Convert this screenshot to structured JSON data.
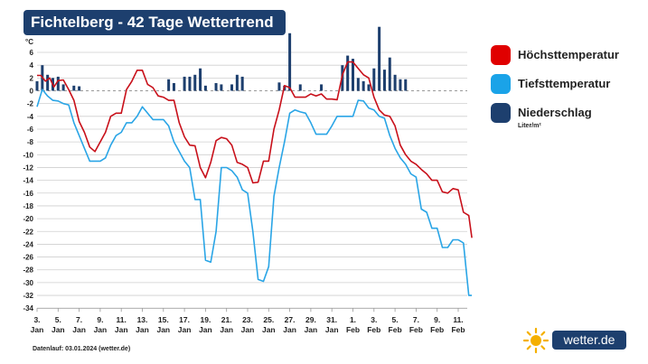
{
  "title": "Fichtelberg - 42 Tage Wettertrend",
  "footer": "Datenlauf: 03.01.2024 (wetter.de)",
  "brand": {
    "name": "wetter",
    "suffix": ".de"
  },
  "legend": [
    {
      "label": "Höchsttemperatur",
      "color": "#e00000"
    },
    {
      "label": "Tiefsttemperatur",
      "color": "#1aa3e8"
    },
    {
      "label": "Niederschlag",
      "color": "#1d3f6e",
      "unit": "Liter/m²"
    }
  ],
  "chart_data": {
    "type": "line",
    "yunit": "°C",
    "ylim": [
      -34,
      6
    ],
    "yticks": [
      6,
      4,
      2,
      0,
      -2,
      -4,
      -6,
      -8,
      -10,
      -12,
      -14,
      -16,
      -18,
      -20,
      -22,
      -24,
      -26,
      -28,
      -30,
      -32,
      -34
    ],
    "xlabels": [
      {
        "day": 0,
        "d": "3.",
        "m": "Jan"
      },
      {
        "day": 2,
        "d": "5.",
        "m": "Jan"
      },
      {
        "day": 4,
        "d": "7.",
        "m": "Jan"
      },
      {
        "day": 6,
        "d": "9.",
        "m": "Jan"
      },
      {
        "day": 8,
        "d": "11.",
        "m": "Jan"
      },
      {
        "day": 10,
        "d": "13.",
        "m": "Jan"
      },
      {
        "day": 12,
        "d": "15.",
        "m": "Jan"
      },
      {
        "day": 14,
        "d": "17.",
        "m": "Jan"
      },
      {
        "day": 16,
        "d": "19.",
        "m": "Jan"
      },
      {
        "day": 18,
        "d": "21.",
        "m": "Jan"
      },
      {
        "day": 20,
        "d": "23.",
        "m": "Jan"
      },
      {
        "day": 22,
        "d": "25.",
        "m": "Jan"
      },
      {
        "day": 24,
        "d": "27.",
        "m": "Jan"
      },
      {
        "day": 26,
        "d": "29.",
        "m": "Jan"
      },
      {
        "day": 28,
        "d": "31.",
        "m": "Jan"
      },
      {
        "day": 30,
        "d": "1.",
        "m": "Feb"
      },
      {
        "day": 32,
        "d": "3.",
        "m": "Feb"
      },
      {
        "day": 34,
        "d": "5.",
        "m": "Feb"
      },
      {
        "day": 36,
        "d": "7.",
        "m": "Feb"
      },
      {
        "day": 38,
        "d": "9.",
        "m": "Feb"
      },
      {
        "day": 40,
        "d": "11.",
        "m": "Feb"
      }
    ],
    "series": [
      {
        "name": "Höchsttemperatur",
        "color": "#c8101a",
        "points": [
          [
            0,
            2.4
          ],
          [
            0.35,
            2.4
          ],
          [
            0.8,
            1.5
          ],
          [
            1.2,
            2.0
          ],
          [
            1.6,
            0.6
          ],
          [
            2.0,
            1.6
          ],
          [
            2.5,
            1.7
          ],
          [
            3.0,
            0.2
          ],
          [
            3.5,
            -1.5
          ],
          [
            4.0,
            -4.8
          ],
          [
            4.5,
            -6.5
          ],
          [
            5.0,
            -8.8
          ],
          [
            5.5,
            -9.5
          ],
          [
            6.0,
            -8.0
          ],
          [
            6.5,
            -6.5
          ],
          [
            7.0,
            -4.0
          ],
          [
            7.5,
            -3.5
          ],
          [
            8.0,
            -3.5
          ],
          [
            8.5,
            0.2
          ],
          [
            9.0,
            1.5
          ],
          [
            9.5,
            3.2
          ],
          [
            10.0,
            3.2
          ],
          [
            10.5,
            1.0
          ],
          [
            11.0,
            0.5
          ],
          [
            11.5,
            -0.8
          ],
          [
            12.0,
            -1.0
          ],
          [
            12.5,
            -1.5
          ],
          [
            13.0,
            -1.5
          ],
          [
            13.5,
            -5.0
          ],
          [
            14.0,
            -7.2
          ],
          [
            14.5,
            -8.5
          ],
          [
            15.0,
            -8.6
          ],
          [
            15.5,
            -12.0
          ],
          [
            16.0,
            -13.6
          ],
          [
            16.5,
            -11.2
          ],
          [
            17.0,
            -7.8
          ],
          [
            17.5,
            -7.3
          ],
          [
            18.0,
            -7.5
          ],
          [
            18.5,
            -8.5
          ],
          [
            19.0,
            -11.2
          ],
          [
            19.5,
            -11.5
          ],
          [
            20.0,
            -12.0
          ],
          [
            20.5,
            -14.4
          ],
          [
            21.0,
            -14.3
          ],
          [
            21.5,
            -11.0
          ],
          [
            22.0,
            -11.0
          ],
          [
            22.5,
            -6.0
          ],
          [
            23.0,
            -3.0
          ],
          [
            23.5,
            0.8
          ],
          [
            24.0,
            0.5
          ],
          [
            24.5,
            -1.0
          ],
          [
            25.0,
            -1.0
          ],
          [
            25.5,
            -1.0
          ],
          [
            26.0,
            -0.5
          ],
          [
            26.5,
            -0.8
          ],
          [
            27.0,
            -0.5
          ],
          [
            27.5,
            -1.3
          ],
          [
            28.0,
            -1.3
          ],
          [
            28.5,
            -1.4
          ],
          [
            29.0,
            2.5
          ],
          [
            29.5,
            4.5
          ],
          [
            30.0,
            4.5
          ],
          [
            30.5,
            3.5
          ],
          [
            31.0,
            2.5
          ],
          [
            31.5,
            2.0
          ],
          [
            32.0,
            -1.0
          ],
          [
            32.5,
            -3.0
          ],
          [
            33.0,
            -3.8
          ],
          [
            33.5,
            -4.0
          ],
          [
            34.0,
            -5.5
          ],
          [
            34.5,
            -8.5
          ],
          [
            35.0,
            -10.0
          ],
          [
            35.5,
            -11.0
          ],
          [
            36.0,
            -11.5
          ],
          [
            36.5,
            -12.3
          ],
          [
            37.0,
            -13.0
          ],
          [
            37.5,
            -14.0
          ],
          [
            38.0,
            -14.0
          ],
          [
            38.5,
            -15.8
          ],
          [
            39.0,
            -16.0
          ],
          [
            39.5,
            -15.3
          ],
          [
            40.0,
            -15.5
          ],
          [
            40.5,
            -19.0
          ],
          [
            41.0,
            -19.5
          ],
          [
            41.3,
            -23.0
          ]
        ]
      },
      {
        "name": "Tiefsttemperatur",
        "color": "#2aa5e6",
        "points": [
          [
            0,
            -2.5
          ],
          [
            0.5,
            0.2
          ],
          [
            1.0,
            -0.8
          ],
          [
            1.5,
            -1.5
          ],
          [
            2.0,
            -1.6
          ],
          [
            2.5,
            -2.0
          ],
          [
            3.0,
            -2.2
          ],
          [
            3.5,
            -5.0
          ],
          [
            4.0,
            -7.0
          ],
          [
            4.5,
            -9.0
          ],
          [
            5.0,
            -11.0
          ],
          [
            5.5,
            -11.0
          ],
          [
            6.0,
            -11.0
          ],
          [
            6.5,
            -10.5
          ],
          [
            7.0,
            -8.5
          ],
          [
            7.5,
            -7.0
          ],
          [
            8.0,
            -6.5
          ],
          [
            8.5,
            -5.0
          ],
          [
            9.0,
            -5.0
          ],
          [
            9.5,
            -4.0
          ],
          [
            10.0,
            -2.5
          ],
          [
            10.5,
            -3.5
          ],
          [
            11.0,
            -4.5
          ],
          [
            11.5,
            -4.5
          ],
          [
            12.0,
            -4.5
          ],
          [
            12.5,
            -5.5
          ],
          [
            13.0,
            -8.0
          ],
          [
            13.5,
            -9.5
          ],
          [
            14.0,
            -11.0
          ],
          [
            14.5,
            -12.0
          ],
          [
            15.0,
            -17.0
          ],
          [
            15.5,
            -17.0
          ],
          [
            16.0,
            -26.5
          ],
          [
            16.5,
            -26.8
          ],
          [
            17.0,
            -22.0
          ],
          [
            17.5,
            -12.0
          ],
          [
            18.0,
            -12.0
          ],
          [
            18.5,
            -12.5
          ],
          [
            19.0,
            -13.5
          ],
          [
            19.5,
            -15.5
          ],
          [
            20.0,
            -16.0
          ],
          [
            20.5,
            -22.0
          ],
          [
            21.0,
            -29.5
          ],
          [
            21.5,
            -29.8
          ],
          [
            22.0,
            -27.5
          ],
          [
            22.5,
            -16.5
          ],
          [
            23.0,
            -12.0
          ],
          [
            23.5,
            -8.0
          ],
          [
            24.0,
            -3.5
          ],
          [
            24.5,
            -3.0
          ],
          [
            25.0,
            -3.3
          ],
          [
            25.5,
            -3.5
          ],
          [
            26.0,
            -5.0
          ],
          [
            26.5,
            -6.8
          ],
          [
            27.0,
            -6.8
          ],
          [
            27.5,
            -6.8
          ],
          [
            28.0,
            -5.5
          ],
          [
            28.5,
            -4.0
          ],
          [
            29.0,
            -4.0
          ],
          [
            29.5,
            -4.0
          ],
          [
            30.0,
            -4.0
          ],
          [
            30.5,
            -1.5
          ],
          [
            31.0,
            -1.6
          ],
          [
            31.5,
            -2.7
          ],
          [
            32.0,
            -3.0
          ],
          [
            32.5,
            -4.0
          ],
          [
            33.0,
            -4.3
          ],
          [
            33.5,
            -7.0
          ],
          [
            34.0,
            -9.0
          ],
          [
            34.5,
            -10.5
          ],
          [
            35.0,
            -11.5
          ],
          [
            35.5,
            -13.0
          ],
          [
            36.0,
            -13.5
          ],
          [
            36.5,
            -18.5
          ],
          [
            37.0,
            -19.0
          ],
          [
            37.5,
            -21.5
          ],
          [
            38.0,
            -21.5
          ],
          [
            38.5,
            -24.5
          ],
          [
            39.0,
            -24.5
          ],
          [
            39.5,
            -23.3
          ],
          [
            40.0,
            -23.3
          ],
          [
            40.5,
            -23.8
          ],
          [
            41.0,
            -32.0
          ],
          [
            41.3,
            -32.0
          ]
        ]
      }
    ],
    "precipitation": {
      "name": "Niederschlag",
      "color": "#1d3f6e",
      "bars": [
        [
          0.0,
          1.5
        ],
        [
          0.5,
          4.0
        ],
        [
          1.0,
          2.5
        ],
        [
          1.5,
          2.0
        ],
        [
          2.0,
          2.2
        ],
        [
          2.5,
          1.0
        ],
        [
          3.5,
          0.8
        ],
        [
          4.0,
          0.7
        ],
        [
          12.5,
          1.8
        ],
        [
          13.0,
          1.2
        ],
        [
          14.0,
          2.2
        ],
        [
          14.5,
          2.2
        ],
        [
          15.0,
          2.5
        ],
        [
          15.5,
          3.5
        ],
        [
          16.0,
          0.8
        ],
        [
          17.0,
          1.2
        ],
        [
          17.5,
          1.0
        ],
        [
          18.5,
          1.0
        ],
        [
          19.0,
          2.5
        ],
        [
          19.5,
          2.2
        ],
        [
          23.0,
          1.3
        ],
        [
          23.5,
          0.8
        ],
        [
          24.0,
          9.0
        ],
        [
          25.0,
          1.0
        ],
        [
          27.0,
          1.0
        ],
        [
          29.0,
          4.0
        ],
        [
          29.5,
          5.5
        ],
        [
          30.0,
          5.0
        ],
        [
          30.5,
          2.0
        ],
        [
          31.0,
          1.5
        ],
        [
          31.5,
          1.0
        ],
        [
          32.0,
          3.5
        ],
        [
          32.5,
          10.0
        ],
        [
          33.0,
          3.3
        ],
        [
          33.5,
          5.2
        ],
        [
          34.0,
          2.5
        ],
        [
          34.5,
          1.8
        ],
        [
          35.0,
          1.8
        ]
      ]
    }
  }
}
